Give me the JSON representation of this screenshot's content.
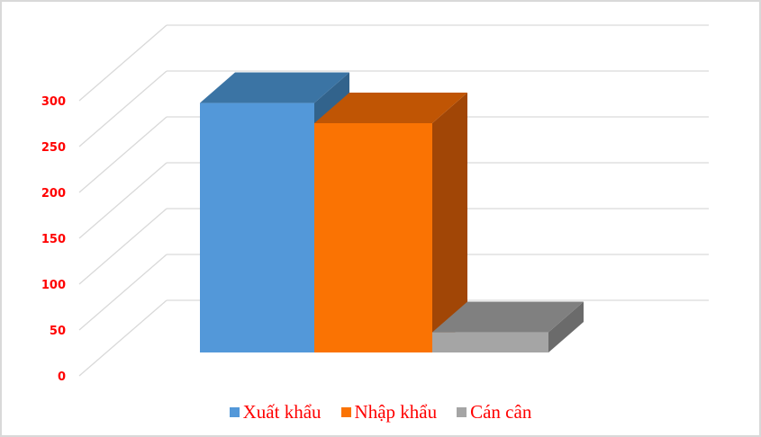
{
  "chart_data": {
    "type": "bar",
    "style": "3d-column",
    "categories": [
      "Xuất khẩu",
      "Nhập khẩu",
      "Cán cân"
    ],
    "values": [
      272,
      250,
      22
    ],
    "ylim": [
      0,
      300
    ],
    "yticks": [
      "0",
      "50",
      "100",
      "150",
      "200",
      "250",
      "300"
    ],
    "grid": true,
    "legend_position": "bottom",
    "colors": [
      "#5398d9",
      "#fa7303",
      "#a5a5a5"
    ],
    "top_colors": [
      "#3b74a4",
      "#c05504",
      "#808080"
    ],
    "side_colors": [
      "#32638c",
      "#a14606",
      "#6b6b6b"
    ],
    "tick_color": "#ff0000"
  }
}
